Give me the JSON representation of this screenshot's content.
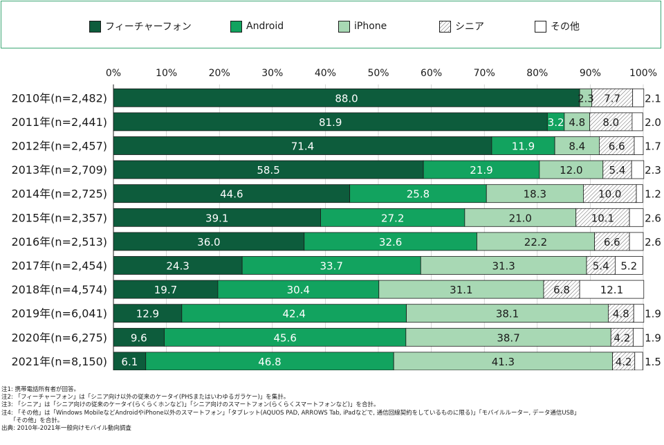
{
  "legend": [
    {
      "label": "フィーチャーフォン",
      "color": "#0d5c3c",
      "pattern": "solid"
    },
    {
      "label": "Android",
      "color": "#12a35f",
      "pattern": "solid"
    },
    {
      "label": "iPhone",
      "color": "#a8d8b4",
      "pattern": "solid"
    },
    {
      "label": "シニア",
      "color": "#ffffff",
      "pattern": "hatch"
    },
    {
      "label": "その他",
      "color": "#ffffff",
      "pattern": "solid"
    }
  ],
  "chart_data": {
    "type": "bar",
    "orientation": "horizontal",
    "stacked": true,
    "xlim": [
      0,
      100
    ],
    "xticks": [
      "0%",
      "10%",
      "20%",
      "30%",
      "40%",
      "50%",
      "60%",
      "70%",
      "80%",
      "90%",
      "100%"
    ],
    "categories": [
      "2010年(n=2,482)",
      "2011年(n=2,441)",
      "2012年(n=2,457)",
      "2013年(n=2,709)",
      "2014年(n=2,725)",
      "2015年(n=2,357)",
      "2016年(n=2,513)",
      "2017年(n=2,454)",
      "2018年(n=4,574)",
      "2019年(n=6,041)",
      "2020年(n=6,275)",
      "2021年(n=8,150)"
    ],
    "series": [
      {
        "name": "フィーチャーフォン",
        "values": [
          88.0,
          81.9,
          71.4,
          58.5,
          44.6,
          39.1,
          36.0,
          24.3,
          19.7,
          12.9,
          9.6,
          6.1
        ],
        "labels": [
          "88.0",
          "81.9",
          "71.4",
          "58.5",
          "44.6",
          "39.1",
          "36.0",
          "24.3",
          "19.7",
          "12.9",
          "9.6",
          "6.1"
        ]
      },
      {
        "name": "Android",
        "values": [
          0,
          3.2,
          11.9,
          21.9,
          25.8,
          27.2,
          32.6,
          33.7,
          30.4,
          42.4,
          45.6,
          46.8
        ],
        "labels": [
          "",
          "3.2",
          "11.9",
          "21.9",
          "25.8",
          "27.2",
          "32.6",
          "33.7",
          "30.4",
          "42.4",
          "45.6",
          "46.8"
        ]
      },
      {
        "name": "iPhone",
        "values": [
          2.3,
          4.8,
          8.4,
          12.0,
          18.3,
          21.0,
          22.2,
          31.3,
          31.1,
          38.1,
          38.7,
          41.3
        ],
        "labels": [
          "2.3",
          "4.8",
          "8.4",
          "12.0",
          "18.3",
          "21.0",
          "22.2",
          "31.3",
          "31.1",
          "38.1",
          "38.7",
          "41.3"
        ]
      },
      {
        "name": "シニア",
        "values": [
          7.7,
          8.0,
          6.6,
          5.4,
          10.0,
          10.1,
          6.6,
          5.4,
          6.8,
          4.8,
          4.2,
          4.2
        ],
        "labels": [
          "7.7",
          "8.0",
          "6.6",
          "5.4",
          "10.0",
          "10.1",
          "6.6",
          "5.4",
          "6.8",
          "4.8",
          "4.2",
          "4.2"
        ]
      },
      {
        "name": "その他",
        "values": [
          2.1,
          2.0,
          1.7,
          2.3,
          1.2,
          2.6,
          2.6,
          5.2,
          12.1,
          1.9,
          1.9,
          1.5
        ],
        "labels": [
          "2.1",
          "2.0",
          "1.7",
          "2.3",
          "1.2",
          "2.6",
          "2.6",
          "5.2",
          "12.1",
          "1.9",
          "1.9",
          "1.5"
        ]
      }
    ]
  },
  "notes": [
    "注1: 携帯電話所有者が回答。",
    "注2: 「フィーチャーフォン」は「シニア向け以外の従来のケータイ(PHSまたはいわゆるガラケー)」を集計。",
    "注3: 「シニア」は「シニア向けの従来のケータイ(らくらくホンなど)」「シニア向けのスマートフォン(らくらくスマートフォンなど)」を合計。",
    "注4: 「その他」は「Windows MobileなどAndroidやiPhone以外のスマートフォン」「タブレット(AQUOS PAD, ARROWS Tab, iPadなどで, 通信回線契約をしているものに限る)」「モバイルルーター, データ通信USB」",
    "　　「その他」を合計。",
    "出典: 2010年-2021年一般向けモバイル動向調査"
  ]
}
